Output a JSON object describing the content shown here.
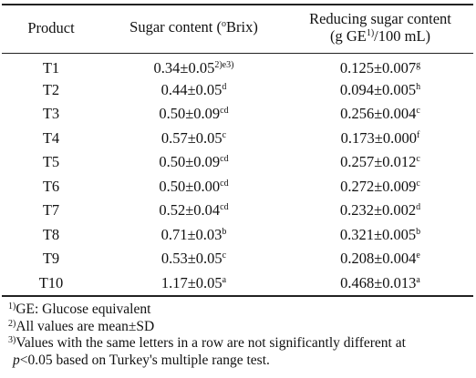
{
  "table": {
    "headers": {
      "product": "Product",
      "sugar": {
        "text": "Sugar content (",
        "sup": "o",
        "tail": "Brix)"
      },
      "reducing_line1": "Reducing sugar content",
      "reducing_line2": {
        "text": "(g GE",
        "sup": "1)",
        "tail": "/100 mL)"
      }
    },
    "rows": [
      {
        "product": "T1",
        "sugar": "0.34±0.05",
        "sugar_sup": "2)e3)",
        "reducing": "0.125±0.007",
        "reducing_sup": "g"
      },
      {
        "product": "T2",
        "sugar": "0.44±0.05",
        "sugar_sup": "d",
        "reducing": "0.094±0.005",
        "reducing_sup": "h"
      },
      {
        "product": "T3",
        "sugar": "0.50±0.09",
        "sugar_sup": "cd",
        "reducing": "0.256±0.004",
        "reducing_sup": "c"
      },
      {
        "product": "T4",
        "sugar": "0.57±0.05",
        "sugar_sup": "c",
        "reducing": "0.173±0.000",
        "reducing_sup": "f"
      },
      {
        "product": "T5",
        "sugar": "0.50±0.09",
        "sugar_sup": "cd",
        "reducing": "0.257±0.012",
        "reducing_sup": "c"
      },
      {
        "product": "T6",
        "sugar": "0.50±0.00",
        "sugar_sup": "cd",
        "reducing": "0.272±0.009",
        "reducing_sup": "c"
      },
      {
        "product": "T7",
        "sugar": "0.52±0.04",
        "sugar_sup": "cd",
        "reducing": "0.232±0.002",
        "reducing_sup": "d"
      },
      {
        "product": "T8",
        "sugar": "0.71±0.03",
        "sugar_sup": "b",
        "reducing": "0.321±0.005",
        "reducing_sup": "b"
      },
      {
        "product": "T9",
        "sugar": "0.53±0.05",
        "sugar_sup": "c",
        "reducing": "0.208±0.004",
        "reducing_sup": "e"
      },
      {
        "product": "T10",
        "sugar": "1.17±0.05",
        "sugar_sup": "a",
        "reducing": "0.468±0.013",
        "reducing_sup": "a"
      }
    ]
  },
  "footnotes": [
    {
      "mark": "1)",
      "text": "GE: Glucose equivalent"
    },
    {
      "mark": "2)",
      "text": "All values are mean±SD"
    },
    {
      "mark": "3)",
      "text": "Values with the same letters in a row are not significantly different at",
      "italic": "p",
      "cont": "<0.05 based on Turkey's multiple range test."
    }
  ]
}
